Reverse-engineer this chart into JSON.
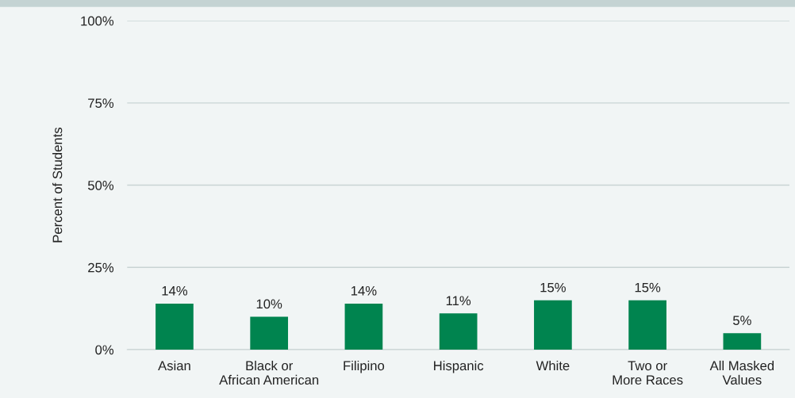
{
  "chart_data": {
    "type": "bar",
    "ylabel": "Percent of Students",
    "categories": [
      "Asian",
      "Black or\nAfrican American",
      "Filipino",
      "Hispanic",
      "White",
      "Two or\nMore Races",
      "All Masked\nValues"
    ],
    "values": [
      14,
      10,
      14,
      11,
      15,
      15,
      5
    ],
    "color": "#00844f",
    "value_labels": [
      "14%",
      "10%",
      "14%",
      "11%",
      "15%",
      "15%",
      "5%"
    ],
    "ylim": [
      0,
      100
    ],
    "yticks": [
      {
        "value": 0,
        "label": "0%"
      },
      {
        "value": 25,
        "label": "25%"
      },
      {
        "value": 50,
        "label": "50%"
      },
      {
        "value": 75,
        "label": "75%"
      },
      {
        "value": 100,
        "label": "100%"
      }
    ],
    "grid": "y"
  }
}
